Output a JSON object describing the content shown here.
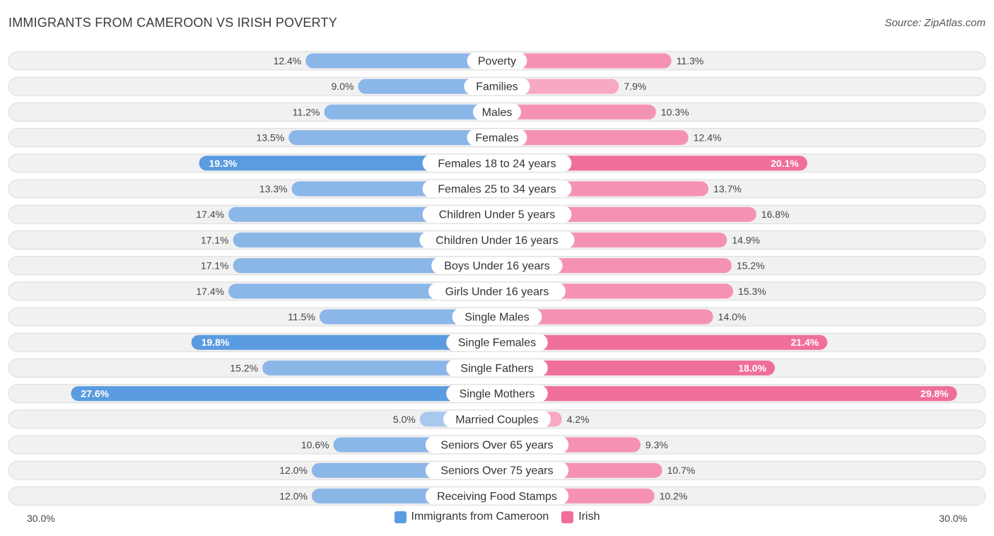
{
  "header": {
    "title": "IMMIGRANTS FROM CAMEROON VS IRISH POVERTY",
    "source": "Source: ZipAtlas.com"
  },
  "axis": {
    "left_label": "30.0%",
    "right_label": "30.0%"
  },
  "legend": {
    "left_name": "Immigrants from Cameroon",
    "right_name": "Irish"
  },
  "colors": {
    "left_dark": "#5b9be0",
    "left_light": "#a9c8ee",
    "right_dark": "#f06e9a",
    "right_light": "#f7a8c2"
  },
  "chart_data": {
    "type": "bar",
    "orientation": "horizontal-diverging",
    "title": "IMMIGRANTS FROM CAMEROON VS IRISH POVERTY",
    "xlim": [
      0,
      30
    ],
    "unit": "%",
    "categories": [
      "Poverty",
      "Families",
      "Males",
      "Females",
      "Females 18 to 24 years",
      "Females 25 to 34 years",
      "Children Under 5 years",
      "Children Under 16 years",
      "Boys Under 16 years",
      "Girls Under 16 years",
      "Single Males",
      "Single Females",
      "Single Fathers",
      "Single Mothers",
      "Married Couples",
      "Seniors Over 65 years",
      "Seniors Over 75 years",
      "Receiving Food Stamps"
    ],
    "series": [
      {
        "name": "Immigrants from Cameroon",
        "side": "left",
        "values": [
          12.4,
          9.0,
          11.2,
          13.5,
          19.3,
          13.3,
          17.4,
          17.1,
          17.1,
          17.4,
          11.5,
          19.8,
          15.2,
          27.6,
          5.0,
          10.6,
          12.0,
          12.0
        ],
        "labels": [
          "12.4%",
          "9.0%",
          "11.2%",
          "13.5%",
          "19.3%",
          "13.3%",
          "17.4%",
          "17.1%",
          "17.1%",
          "17.4%",
          "11.5%",
          "19.8%",
          "15.2%",
          "27.6%",
          "5.0%",
          "10.6%",
          "12.0%",
          "12.0%"
        ]
      },
      {
        "name": "Irish",
        "side": "right",
        "values": [
          11.3,
          7.9,
          10.3,
          12.4,
          20.1,
          13.7,
          16.8,
          14.9,
          15.2,
          15.3,
          14.0,
          21.4,
          18.0,
          29.8,
          4.2,
          9.3,
          10.7,
          10.2
        ],
        "labels": [
          "11.3%",
          "7.9%",
          "10.3%",
          "12.4%",
          "20.1%",
          "13.7%",
          "16.8%",
          "14.9%",
          "15.2%",
          "15.3%",
          "14.0%",
          "21.4%",
          "18.0%",
          "29.8%",
          "4.2%",
          "9.3%",
          "10.7%",
          "10.2%"
        ]
      }
    ]
  }
}
